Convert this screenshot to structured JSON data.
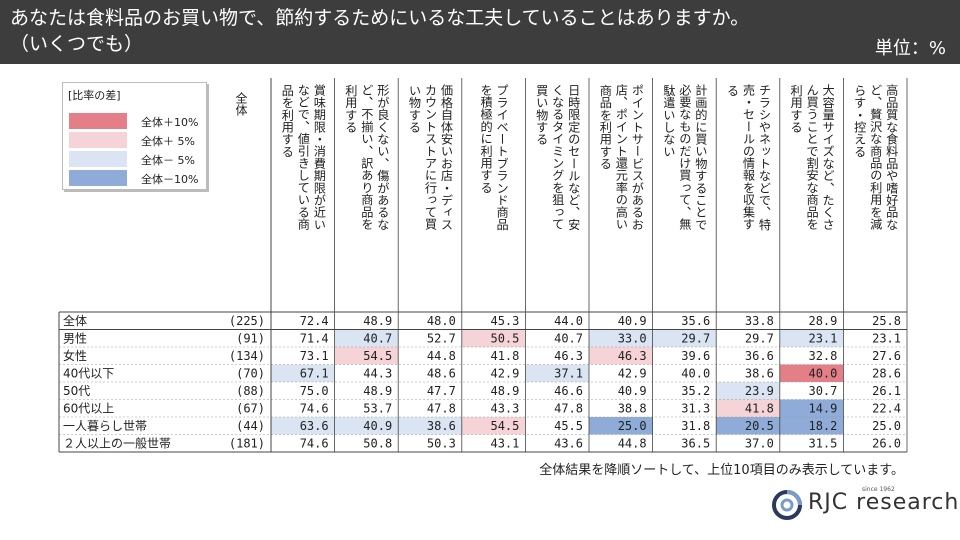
{
  "title_line1": "あなたは食料品のお買い物で、節約するためにいるな工夫していることはありますか。",
  "title_line2": "（いくつでも）",
  "unit": "単位：%",
  "legend": {
    "title": "[比率の差]",
    "items": [
      {
        "label": "全体＋10%",
        "color": "#e47f88"
      },
      {
        "label": "全体＋ 5%",
        "color": "#f5d3d7"
      },
      {
        "label": "全体－ 5%",
        "color": "#dae4f2"
      },
      {
        "label": "全体－10%",
        "color": "#8fabd7"
      }
    ]
  },
  "footnote": "全体結果を降順ソートして、上位10項目のみ表示しています。",
  "logo": {
    "brand": "RJC research",
    "since": "since 1962"
  },
  "chart_data": {
    "type": "table",
    "total_header": "全体",
    "columns": [
      "賞味期限・消費期限が近いなどで、値引きしている商品を利用する",
      "形が良くない、傷があるなど、不揃い、訳あり商品を利用する",
      "価格自体安いお店・ディスカウントストアに行って買い物する",
      "プライベートブランド商品を積極的に利用する",
      "日時限定のセールなど、安くなるタイミングを狙って買い物する",
      "ポイントサービスがあるお店、ポイント還元率の高い商品を利用する",
      "計画的に買い物することで必要なものだけ買って、無駄遣いしない",
      "チラシやネットなどで、特売・セールの情報を収集する",
      "大容量サイズなど、たくさん買うことで割安な商品を利用する",
      "高品質な食料品や嗜好品など、贅沢な商品の利用を減らす・控える"
    ],
    "rows": [
      {
        "label": "全体",
        "n": "(225)",
        "values": [
          72.4,
          48.9,
          48.0,
          45.3,
          44.0,
          40.9,
          35.6,
          33.8,
          28.9,
          25.8
        ],
        "hl": [
          0,
          0,
          0,
          0,
          0,
          0,
          0,
          0,
          0,
          0
        ]
      },
      {
        "label": "男性",
        "n": "(91)",
        "values": [
          71.4,
          40.7,
          52.7,
          50.5,
          40.7,
          33.0,
          29.7,
          29.7,
          23.1,
          23.1
        ],
        "hl": [
          0,
          -1,
          0,
          1,
          0,
          -1,
          -1,
          0,
          -1,
          0
        ]
      },
      {
        "label": "女性",
        "n": "(134)",
        "values": [
          73.1,
          54.5,
          44.8,
          41.8,
          46.3,
          46.3,
          39.6,
          36.6,
          32.8,
          27.6
        ],
        "hl": [
          0,
          1,
          0,
          0,
          0,
          1,
          0,
          0,
          0,
          0
        ]
      },
      {
        "label": "40代以下",
        "n": "(70)",
        "values": [
          67.1,
          44.3,
          48.6,
          42.9,
          37.1,
          42.9,
          40.0,
          38.6,
          40.0,
          28.6
        ],
        "hl": [
          -1,
          0,
          0,
          0,
          -1,
          0,
          0,
          0,
          2,
          0
        ]
      },
      {
        "label": "50代",
        "n": "(88)",
        "values": [
          75.0,
          48.9,
          47.7,
          48.9,
          46.6,
          40.9,
          35.2,
          23.9,
          30.7,
          26.1
        ],
        "hl": [
          0,
          0,
          0,
          0,
          0,
          0,
          0,
          -1,
          0,
          0
        ]
      },
      {
        "label": "60代以上",
        "n": "(67)",
        "values": [
          74.6,
          53.7,
          47.8,
          43.3,
          47.8,
          38.8,
          31.3,
          41.8,
          14.9,
          22.4
        ],
        "hl": [
          0,
          0,
          0,
          0,
          0,
          0,
          0,
          1,
          -2,
          0
        ]
      },
      {
        "label": "一人暮らし世帯",
        "n": "(44)",
        "values": [
          63.6,
          40.9,
          38.6,
          54.5,
          45.5,
          25.0,
          31.8,
          20.5,
          18.2,
          25.0
        ],
        "hl": [
          -1,
          -1,
          -1,
          1,
          0,
          -2,
          0,
          -2,
          -2,
          0
        ]
      },
      {
        "label": "２人以上の一般世帯",
        "n": "(181)",
        "values": [
          74.6,
          50.8,
          50.3,
          43.1,
          43.6,
          44.8,
          36.5,
          37.0,
          31.5,
          26.0
        ],
        "hl": [
          0,
          0,
          0,
          0,
          0,
          0,
          0,
          0,
          0,
          0
        ]
      }
    ]
  }
}
